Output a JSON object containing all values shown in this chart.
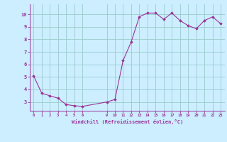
{
  "x": [
    0,
    1,
    2,
    3,
    4,
    5,
    6,
    9,
    10,
    11,
    12,
    13,
    14,
    15,
    16,
    17,
    18,
    19,
    20,
    21,
    22,
    23
  ],
  "y": [
    5.1,
    3.7,
    3.5,
    3.3,
    2.8,
    2.7,
    2.65,
    3.0,
    3.2,
    6.3,
    7.8,
    9.8,
    10.1,
    10.1,
    9.6,
    10.1,
    9.5,
    9.1,
    8.85,
    9.5,
    9.8,
    9.25
  ],
  "line_color": "#993399",
  "marker_color": "#993399",
  "bg_color": "#cceeff",
  "grid_color": "#99cccc",
  "xlabel": "Windchill (Refroidissement éolien,°C)",
  "xticks": [
    0,
    1,
    2,
    3,
    4,
    5,
    6,
    9,
    10,
    11,
    12,
    13,
    14,
    15,
    16,
    17,
    18,
    19,
    20,
    21,
    22,
    23
  ],
  "yticks": [
    3,
    4,
    5,
    6,
    7,
    8,
    9,
    10
  ],
  "ylim": [
    2.3,
    10.8
  ],
  "xlim": [
    -0.5,
    23.5
  ]
}
